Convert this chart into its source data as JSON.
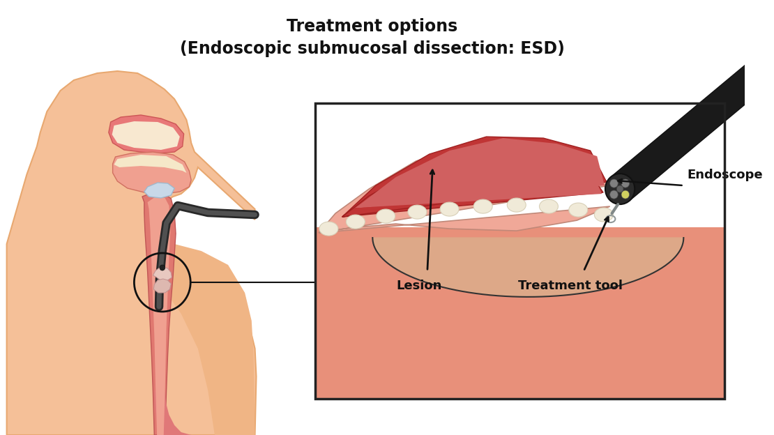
{
  "title_line1": "Treatment options",
  "title_line2": "(Endoscopic submucosal dissection: ESD)",
  "title_fontsize": 17,
  "title_fontweight": "bold",
  "bg_color": "#ffffff",
  "skin_color": "#f5c098",
  "skin_dark": "#e8a870",
  "skin_mid": "#f0b585",
  "throat_color": "#e88878",
  "esoph_color": "#e07870",
  "tissue_bg": "#e8907a",
  "tissue_light": "#eeaa90",
  "lesion_dark": "#c03535",
  "lesion_medium": "#d06060",
  "flap_color": "#f0a898",
  "white_dot": "#f0ead8",
  "endoscope_body": "#1a1a1a",
  "arrow_color": "#111111",
  "label_lesion": "Lesion",
  "label_treatment": "Treatment tool",
  "label_endoscope": "Endoscope",
  "label_fontsize": 12
}
